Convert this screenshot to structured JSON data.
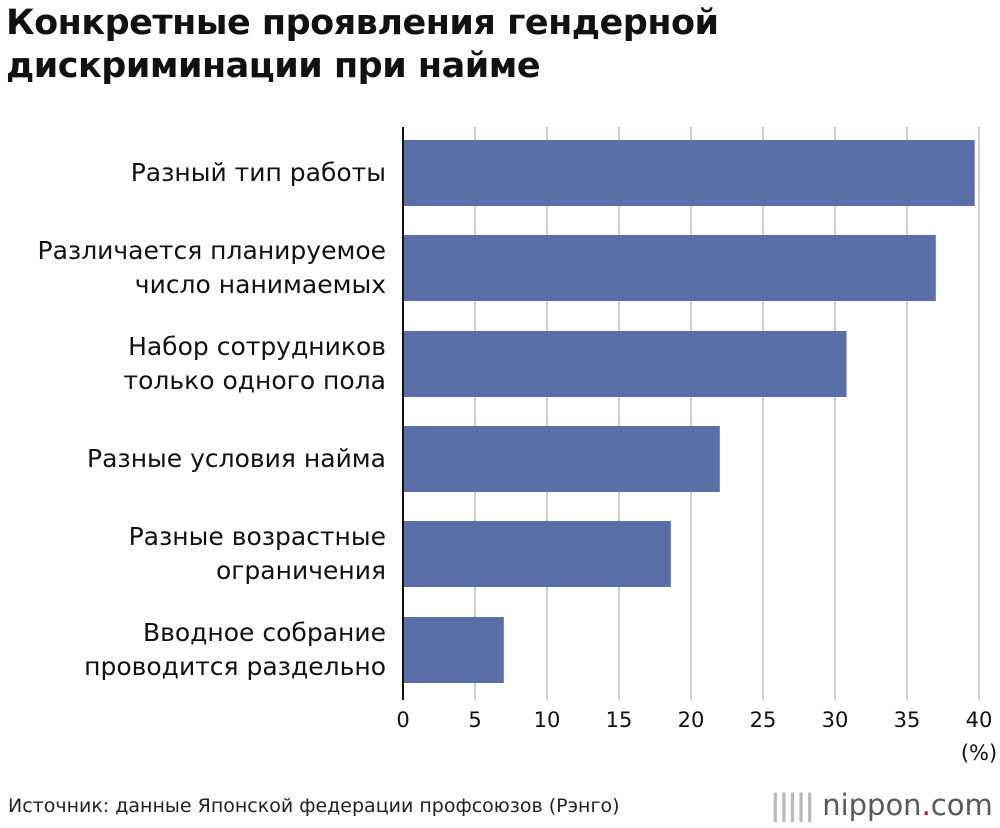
{
  "title_lines": [
    "Конкретные проявления гендерной",
    "дискриминации при найме"
  ],
  "chart_data": {
    "type": "bar",
    "orientation": "horizontal",
    "title": "Конкретные проявления гендерной дискриминации при найме",
    "categories": [
      [
        "Разный тип работы"
      ],
      [
        "Различается планируемое",
        "число нанимаемых"
      ],
      [
        "Набор сотрудников",
        "только одного пола"
      ],
      [
        "Разные условия найма"
      ],
      [
        "Разные возрастные",
        "ограничения"
      ],
      [
        "Вводное собрание",
        "проводится раздельно"
      ]
    ],
    "values": [
      39.7,
      37.0,
      30.8,
      22.0,
      18.6,
      7.0
    ],
    "xlim": [
      0,
      40
    ],
    "xticks": [
      "0",
      "5",
      "10",
      "15",
      "20",
      "25",
      "30",
      "35",
      "40"
    ],
    "unit_label": "(%)",
    "bar_color": "#5a6ea8",
    "grid": true
  },
  "source": "Источник: данные Японской федерации профсоюзов (Рэнго)",
  "logo": {
    "wave": "|||||",
    "brand": "nippon",
    "dot": ".",
    "tld": "com"
  }
}
